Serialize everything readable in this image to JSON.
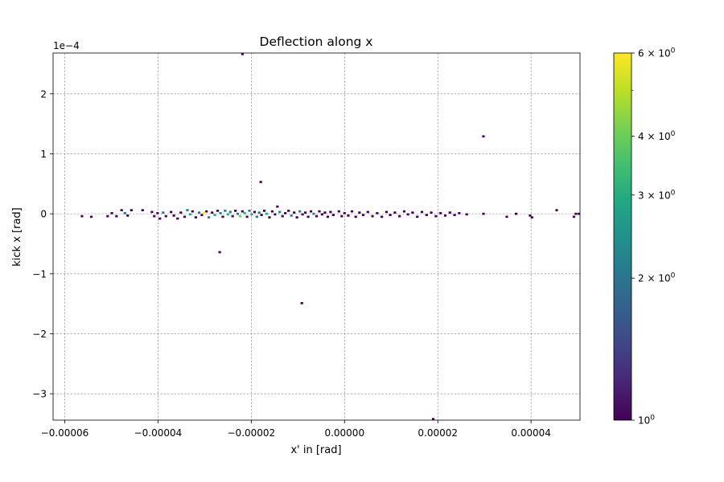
{
  "chart_data": {
    "type": "heatmap",
    "title": "Deflection along x",
    "xlabel": "x' in [rad]",
    "ylabel": "kick x [rad]",
    "xlim": [
      -6.25e-05,
      5.05e-05
    ],
    "ylim": [
      -0.000344,
      0.000268
    ],
    "y_offset_label": "1e−4",
    "x_ticks": [
      {
        "value": -6e-05,
        "label": "−0.00006"
      },
      {
        "value": -4e-05,
        "label": "−0.00004"
      },
      {
        "value": -2e-05,
        "label": "−0.00002"
      },
      {
        "value": 0.0,
        "label": "0.00000"
      },
      {
        "value": 2e-05,
        "label": "0.00002"
      },
      {
        "value": 4e-05,
        "label": "0.00004"
      }
    ],
    "y_ticks": [
      {
        "value": 0.0002,
        "label": "2"
      },
      {
        "value": 0.0001,
        "label": "1"
      },
      {
        "value": 0.0,
        "label": "0"
      },
      {
        "value": -0.0001,
        "label": "−1"
      },
      {
        "value": -0.0002,
        "label": "−2"
      },
      {
        "value": -0.0003,
        "label": "−3"
      }
    ],
    "grid": true,
    "colorbar": {
      "scale": "log",
      "range": [
        1,
        6
      ],
      "colormap": "viridis",
      "ticks": [
        {
          "value": 1,
          "label": "10",
          "exp": "0"
        },
        {
          "value": 2,
          "label": "2 × 10",
          "exp": "0"
        },
        {
          "value": 3,
          "label": "3 × 10",
          "exp": "0"
        },
        {
          "value": 4,
          "label": "4 × 10",
          "exp": "0"
        },
        {
          "value": 6,
          "label": "6 × 10",
          "exp": "0"
        }
      ],
      "minor_ticks": [
        5
      ]
    },
    "bin_size": {
      "x": 5.5e-07,
      "y": 3.6e-06
    },
    "bins": [
      {
        "x": -2.188e-05,
        "y": 0.000268,
        "c": 1
      },
      {
        "x": 2.979e-05,
        "y": 0.000129,
        "c": 1
      },
      {
        "x": -1.796e-05,
        "y": 5.3e-05,
        "c": 1
      },
      {
        "x": -2.677e-05,
        "y": -6.4e-05,
        "c": 1
      },
      {
        "x": -9.15e-06,
        "y": -0.000149,
        "c": 1
      },
      {
        "x": 1.902e-05,
        "y": -0.000344,
        "c": 1
      },
      {
        "x": -5.63e-05,
        "y": -4e-06,
        "c": 1
      },
      {
        "x": -5.43e-05,
        "y": -5e-06,
        "c": 1
      },
      {
        "x": -5.08e-05,
        "y": -4e-06,
        "c": 1
      },
      {
        "x": -4.99e-05,
        "y": 1e-06,
        "c": 1
      },
      {
        "x": -4.89e-05,
        "y": -4e-06,
        "c": 1
      },
      {
        "x": -4.78e-05,
        "y": 6e-06,
        "c": 1
      },
      {
        "x": -4.71e-05,
        "y": 1e-06,
        "c": 2
      },
      {
        "x": -4.65e-05,
        "y": -3e-06,
        "c": 1
      },
      {
        "x": -4.57e-05,
        "y": 6e-06,
        "c": 1
      },
      {
        "x": -4.33e-05,
        "y": 6e-06,
        "c": 1
      },
      {
        "x": -4.13e-05,
        "y": 3e-06,
        "c": 1
      },
      {
        "x": -4.08e-05,
        "y": -4e-06,
        "c": 1
      },
      {
        "x": -4.01e-05,
        "y": 1e-06,
        "c": 1
      },
      {
        "x": -3.96e-05,
        "y": -8e-06,
        "c": 1
      },
      {
        "x": -3.89e-05,
        "y": 2e-06,
        "c": 2
      },
      {
        "x": -3.83e-05,
        "y": -4e-06,
        "c": 1
      },
      {
        "x": -3.72e-05,
        "y": 3e-06,
        "c": 1
      },
      {
        "x": -3.66e-05,
        "y": -3e-06,
        "c": 1
      },
      {
        "x": -3.58e-05,
        "y": -8e-06,
        "c": 1
      },
      {
        "x": -3.51e-05,
        "y": 2e-06,
        "c": 1
      },
      {
        "x": -3.43e-05,
        "y": -5e-06,
        "c": 1
      },
      {
        "x": -3.37e-05,
        "y": 6e-06,
        "c": 2
      },
      {
        "x": -3.31e-05,
        "y": -1e-06,
        "c": 3
      },
      {
        "x": -3.26e-05,
        "y": 4e-06,
        "c": 1
      },
      {
        "x": -3.19e-05,
        "y": -6e-06,
        "c": 1
      },
      {
        "x": -3.12e-05,
        "y": 2e-06,
        "c": 2
      },
      {
        "x": -3.06e-05,
        "y": -2e-06,
        "c": 1
      },
      {
        "x": -3.02e-05,
        "y": 1e-06,
        "c": 6
      },
      {
        "x": -2.96e-05,
        "y": 4e-06,
        "c": 1
      },
      {
        "x": -2.91e-05,
        "y": -6e-06,
        "c": 2
      },
      {
        "x": -2.84e-05,
        "y": 2e-06,
        "c": 1
      },
      {
        "x": -2.78e-05,
        "y": -2e-06,
        "c": 3
      },
      {
        "x": -2.72e-05,
        "y": 5e-06,
        "c": 1
      },
      {
        "x": -2.66e-05,
        "y": 1e-06,
        "c": 2
      },
      {
        "x": -2.61e-05,
        "y": -5e-06,
        "c": 1
      },
      {
        "x": -2.56e-05,
        "y": 5e-06,
        "c": 2
      },
      {
        "x": -2.5e-05,
        "y": -1e-06,
        "c": 3
      },
      {
        "x": -2.45e-05,
        "y": 3e-06,
        "c": 2
      },
      {
        "x": -2.4e-05,
        "y": -4e-06,
        "c": 1
      },
      {
        "x": -2.34e-05,
        "y": 5e-06,
        "c": 1
      },
      {
        "x": -2.29e-05,
        "y": 0.0,
        "c": 2
      },
      {
        "x": -2.24e-05,
        "y": -4e-06,
        "c": 4
      },
      {
        "x": -2.19e-05,
        "y": 4e-06,
        "c": 1
      },
      {
        "x": -2.14e-05,
        "y": 1e-06,
        "c": 3
      },
      {
        "x": -2.09e-05,
        "y": -5e-06,
        "c": 1
      },
      {
        "x": -2.04e-05,
        "y": 5e-06,
        "c": 2
      },
      {
        "x": -1.99e-05,
        "y": -1e-06,
        "c": 3
      },
      {
        "x": -1.93e-05,
        "y": 3e-06,
        "c": 1
      },
      {
        "x": -1.88e-05,
        "y": -5e-06,
        "c": 2
      },
      {
        "x": -1.83e-05,
        "y": 2e-06,
        "c": 2
      },
      {
        "x": -1.78e-05,
        "y": -2e-06,
        "c": 1
      },
      {
        "x": -1.72e-05,
        "y": 5e-06,
        "c": 1
      },
      {
        "x": -1.67e-05,
        "y": 0.0,
        "c": 3
      },
      {
        "x": -1.61e-05,
        "y": -6e-06,
        "c": 1
      },
      {
        "x": -1.55e-05,
        "y": 4e-06,
        "c": 1
      },
      {
        "x": -1.49e-05,
        "y": -1e-06,
        "c": 1
      },
      {
        "x": -1.44e-05,
        "y": 1.2e-05,
        "c": 1
      },
      {
        "x": -1.39e-05,
        "y": 3e-06,
        "c": 2
      },
      {
        "x": -1.33e-05,
        "y": -4e-06,
        "c": 1
      },
      {
        "x": -1.27e-05,
        "y": 1e-06,
        "c": 1
      },
      {
        "x": -1.2e-05,
        "y": 5e-06,
        "c": 1
      },
      {
        "x": -1.14e-05,
        "y": -3e-06,
        "c": 2
      },
      {
        "x": -1.08e-05,
        "y": 2e-06,
        "c": 1
      },
      {
        "x": -1.02e-05,
        "y": -6e-06,
        "c": 1
      },
      {
        "x": -9.6e-06,
        "y": 4e-06,
        "c": 2
      },
      {
        "x": -9e-06,
        "y": -1e-06,
        "c": 1
      },
      {
        "x": -8.4e-06,
        "y": 2e-06,
        "c": 1
      },
      {
        "x": -7.8e-06,
        "y": -5e-06,
        "c": 1
      },
      {
        "x": -7.2e-06,
        "y": 4e-06,
        "c": 1
      },
      {
        "x": -6.6e-06,
        "y": 0.0,
        "c": 2
      },
      {
        "x": -6e-06,
        "y": -4e-06,
        "c": 1
      },
      {
        "x": -5.4e-06,
        "y": 4e-06,
        "c": 1
      },
      {
        "x": -4.8e-06,
        "y": -1e-06,
        "c": 1
      },
      {
        "x": -4.2e-06,
        "y": 2e-06,
        "c": 1
      },
      {
        "x": -3.6e-06,
        "y": -5e-06,
        "c": 1
      },
      {
        "x": -3e-06,
        "y": 3e-06,
        "c": 1
      },
      {
        "x": -2.4e-06,
        "y": -2e-06,
        "c": 1
      },
      {
        "x": -1.2e-06,
        "y": 4e-06,
        "c": 1
      },
      {
        "x": -6e-07,
        "y": -4e-06,
        "c": 1
      },
      {
        "x": 0.0,
        "y": 1e-06,
        "c": 1
      },
      {
        "x": 8e-07,
        "y": -3e-06,
        "c": 1
      },
      {
        "x": 1.6e-06,
        "y": 4e-06,
        "c": 1
      },
      {
        "x": 2.4e-06,
        "y": -5e-06,
        "c": 1
      },
      {
        "x": 3.2e-06,
        "y": 2e-06,
        "c": 1
      },
      {
        "x": 4e-06,
        "y": -2e-06,
        "c": 1
      },
      {
        "x": 5e-06,
        "y": 3e-06,
        "c": 1
      },
      {
        "x": 6e-06,
        "y": -4e-06,
        "c": 1
      },
      {
        "x": 7e-06,
        "y": 1e-06,
        "c": 1
      },
      {
        "x": 8e-06,
        "y": -5e-06,
        "c": 1
      },
      {
        "x": 9e-06,
        "y": 3e-06,
        "c": 1
      },
      {
        "x": 9.8e-06,
        "y": -2e-06,
        "c": 1
      },
      {
        "x": 1.08e-05,
        "y": 2e-06,
        "c": 1
      },
      {
        "x": 1.18e-05,
        "y": -4e-06,
        "c": 1
      },
      {
        "x": 1.28e-05,
        "y": 4e-06,
        "c": 1
      },
      {
        "x": 1.36e-05,
        "y": -1e-06,
        "c": 1
      },
      {
        "x": 1.46e-05,
        "y": 2e-06,
        "c": 1
      },
      {
        "x": 1.56e-05,
        "y": -5e-06,
        "c": 1
      },
      {
        "x": 1.66e-05,
        "y": 3e-06,
        "c": 1
      },
      {
        "x": 1.76e-05,
        "y": -2e-06,
        "c": 1
      },
      {
        "x": 1.86e-05,
        "y": 2e-06,
        "c": 1
      },
      {
        "x": 1.96e-05,
        "y": -4e-06,
        "c": 1
      },
      {
        "x": 2.06e-05,
        "y": 1e-06,
        "c": 1
      },
      {
        "x": 2.16e-05,
        "y": -3e-06,
        "c": 1
      },
      {
        "x": 2.26e-05,
        "y": 2e-06,
        "c": 1
      },
      {
        "x": 2.36e-05,
        "y": -2e-06,
        "c": 1
      },
      {
        "x": 2.46e-05,
        "y": 1e-06,
        "c": 1
      },
      {
        "x": 2.62e-05,
        "y": -1e-06,
        "c": 1
      },
      {
        "x": 2.98e-05,
        "y": 0.0,
        "c": 1
      },
      {
        "x": 3.48e-05,
        "y": -5e-06,
        "c": 1
      },
      {
        "x": 3.68e-05,
        "y": 0.0,
        "c": 1
      },
      {
        "x": 3.98e-05,
        "y": -3e-06,
        "c": 1
      },
      {
        "x": 4.02e-05,
        "y": -6e-06,
        "c": 1
      },
      {
        "x": 4.55e-05,
        "y": 6e-06,
        "c": 1
      },
      {
        "x": 4.92e-05,
        "y": -5e-06,
        "c": 1
      },
      {
        "x": 4.96e-05,
        "y": 0.0,
        "c": 1
      },
      {
        "x": 5.03e-05,
        "y": 0.0,
        "c": 1
      }
    ]
  }
}
